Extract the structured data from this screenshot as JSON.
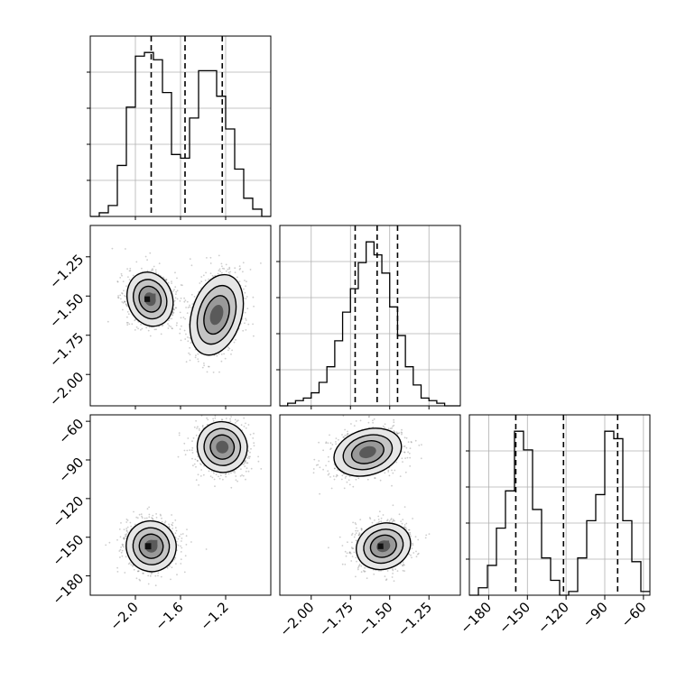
{
  "chart_data": [
    {
      "type": "step-histogram",
      "panel": "hist-param-1",
      "xlim": [
        -2.4,
        -0.8
      ],
      "xticks": [
        "-2.0",
        "-1.6",
        "-1.2"
      ],
      "grid": true,
      "bin_edges": [
        -2.4,
        -2.32,
        -2.24,
        -2.16,
        -2.08,
        -2.0,
        -1.92,
        -1.84,
        -1.76,
        -1.68,
        -1.6,
        -1.52,
        -1.44,
        -1.36,
        -1.28,
        -1.2,
        -1.12,
        -1.04,
        -0.96,
        -0.88,
        -0.8
      ],
      "counts": [
        0,
        1,
        3,
        14,
        30,
        44,
        45,
        43,
        34,
        17,
        16,
        27,
        40,
        40,
        33,
        24,
        13,
        5,
        2,
        0
      ],
      "quantiles": [
        -1.86,
        -1.56,
        -1.23
      ]
    },
    {
      "type": "step-histogram",
      "panel": "hist-param-2",
      "xlim": [
        -2.2,
        -1.05
      ],
      "xticks": [
        "-2.00",
        "-1.75",
        "-1.50",
        "-1.25"
      ],
      "grid": true,
      "bin_edges": [
        -2.2,
        -2.15,
        -2.1,
        -2.05,
        -2.0,
        -1.95,
        -1.9,
        -1.85,
        -1.8,
        -1.75,
        -1.7,
        -1.65,
        -1.6,
        -1.55,
        -1.5,
        -1.45,
        -1.4,
        -1.35,
        -1.3,
        -1.25,
        -1.2,
        -1.15,
        -1.1,
        -1.05
      ],
      "counts": [
        0,
        1,
        2,
        3,
        5,
        9,
        15,
        25,
        36,
        45,
        55,
        63,
        58,
        51,
        38,
        27,
        15,
        8,
        3,
        2,
        1,
        0,
        0
      ],
      "quantiles": [
        -1.72,
        -1.58,
        -1.45
      ]
    },
    {
      "type": "step-histogram",
      "panel": "hist-param-3",
      "xlim": [
        -195,
        -55
      ],
      "xticks": [
        "-180",
        "-150",
        "-120",
        "-90",
        "-60"
      ],
      "grid": true,
      "bin_edges": [
        -195,
        -188,
        -181,
        -174,
        -167,
        -160,
        -153,
        -146,
        -139,
        -132,
        -125,
        -118,
        -111,
        -104,
        -97,
        -90,
        -83,
        -76,
        -69,
        -62,
        -55
      ],
      "counts": [
        0,
        2,
        8,
        18,
        28,
        44,
        39,
        23,
        10,
        4,
        0,
        1,
        10,
        20,
        27,
        44,
        42,
        20,
        9,
        1
      ],
      "quantiles": [
        -159,
        -122,
        -80
      ]
    },
    {
      "type": "corner-2d",
      "panel": "joint-1-2",
      "xlim": [
        -2.4,
        -0.8
      ],
      "ylim": [
        -2.2,
        -1.05
      ],
      "xticks": [
        "-2.0",
        "-1.6",
        "-1.2"
      ],
      "yticks": [
        "-1.25",
        "-1.50",
        "-1.75",
        "-2.00"
      ],
      "clusters": [
        {
          "x": -1.87,
          "y": -1.52,
          "sx": 0.09,
          "sy": 0.08,
          "rot": -0.35,
          "n": 900
        },
        {
          "x": -1.28,
          "y": -1.62,
          "sx": 0.1,
          "sy": 0.12,
          "rot": 0.3,
          "n": 850
        }
      ]
    },
    {
      "type": "corner-2d",
      "panel": "joint-1-3",
      "xlim": [
        -2.4,
        -0.8
      ],
      "ylim": [
        -195,
        -55
      ],
      "xticks": [
        "-2.0",
        "-1.6",
        "-1.2"
      ],
      "yticks": [
        "-60",
        "-90",
        "-120",
        "-150",
        "-180"
      ],
      "clusters": [
        {
          "x": -1.86,
          "y": -157,
          "sx": 0.1,
          "sy": 9,
          "rot": -0.5,
          "n": 900
        },
        {
          "x": -1.23,
          "y": -80,
          "sx": 0.1,
          "sy": 9,
          "rot": -0.5,
          "n": 850
        }
      ]
    },
    {
      "type": "corner-2d",
      "panel": "joint-2-3",
      "xlim": [
        -2.2,
        -1.05
      ],
      "ylim": [
        -195,
        -55
      ],
      "xticks": [
        "-2.00",
        "-1.75",
        "-1.50",
        "-1.25"
      ],
      "clusters": [
        {
          "x": -1.54,
          "y": -157,
          "sx": 0.08,
          "sy": 8,
          "rot": -0.35,
          "n": 900
        },
        {
          "x": -1.64,
          "y": -84,
          "sx": 0.1,
          "sy": 8,
          "rot": -0.3,
          "n": 850
        }
      ]
    }
  ],
  "colors": {
    "ink": "#000000",
    "grid": "#b0b0b0",
    "scatter": "#6f6f6f",
    "level1": "#e6e6e6",
    "level2": "#c4c4c4",
    "level3": "#999999",
    "level4": "#5a5a5a",
    "level5": "#111111"
  }
}
